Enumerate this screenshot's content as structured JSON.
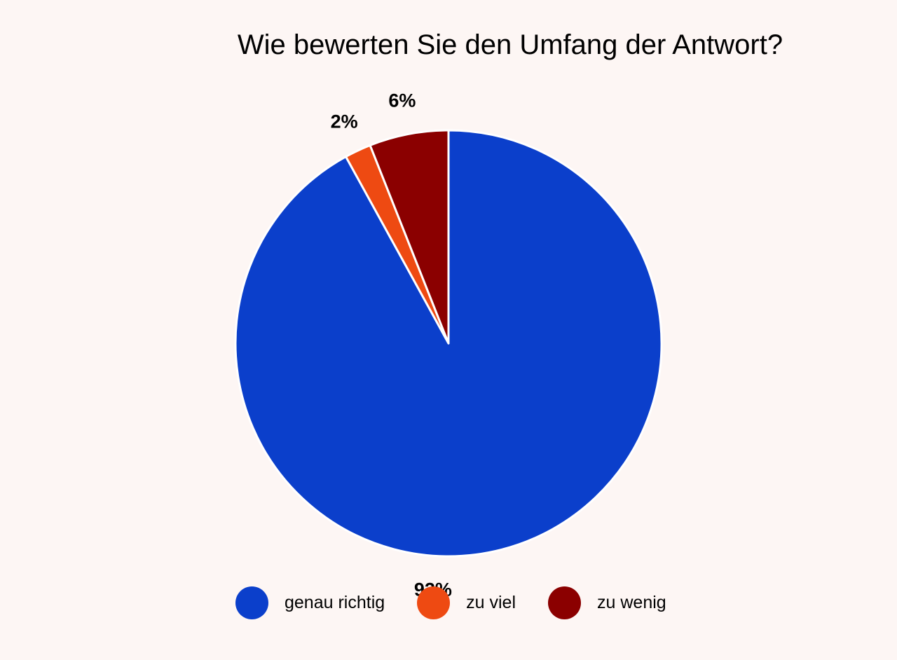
{
  "chart_data": {
    "type": "pie",
    "title": "Wie bewerten Sie den Umfang der Antwort?",
    "slices": [
      {
        "label": "genau richtig",
        "value": 92,
        "display": "92%",
        "color": "#0b3fcb"
      },
      {
        "label": "zu viel",
        "value": 2,
        "display": "2%",
        "color": "#ee4a12"
      },
      {
        "label": "zu wenig",
        "value": 6,
        "display": "6%",
        "color": "#8b0000"
      }
    ],
    "legend_position": "bottom",
    "data_labels": "outside"
  }
}
